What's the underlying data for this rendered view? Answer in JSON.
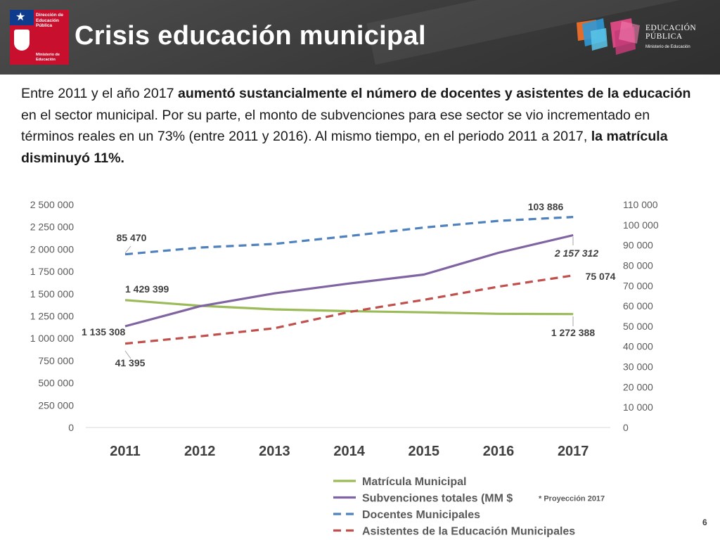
{
  "header": {
    "title": "Crisis educación municipal",
    "gov_logo_line1": "Dirección de",
    "gov_logo_line2": "Educación",
    "gov_logo_line3": "Pública",
    "gov_logo_ministry1": "Ministerio de",
    "gov_logo_ministry2": "Educación",
    "brand_line1": "EDUCACIÓN",
    "brand_line2": "PÚBLICA",
    "brand_line3": "Ministerio de Educación"
  },
  "intro": {
    "p1": "Entre 2011 y el año 2017 ",
    "b1": "aumentó sustancialmente el número de docentes y asistentes de la educación",
    "p2": " en el sector municipal. Por su parte, el monto de subvenciones para ese sector se vio incrementado en términos reales en un 73% (entre 2011 y 2016). Al mismo tiempo, en el periodo 2011 a 2017, ",
    "b2": "la matrícula disminuyó 11%."
  },
  "note": "* Proyección 2017",
  "page_number": "6",
  "chart_data": {
    "type": "line",
    "categories": [
      "2011",
      "2012",
      "2013",
      "2014",
      "2015",
      "2016",
      "2017"
    ],
    "y_left": {
      "range": [
        0,
        2500000
      ],
      "ticks": [
        "0",
        "250 000",
        "500 000",
        "750 000",
        "1 000 000",
        "1 250 000",
        "1 500 000",
        "1 750 000",
        "2 000 000",
        "2 250 000",
        "2 500 000"
      ]
    },
    "y_right": {
      "range": [
        0,
        110000
      ],
      "ticks": [
        "0",
        "10 000",
        "20 000",
        "30 000",
        "40 000",
        "50 000",
        "60 000",
        "70 000",
        "80 000",
        "90 000",
        "100 000",
        "110 000"
      ]
    },
    "series": [
      {
        "name": "Matrícula Municipal",
        "axis": "left",
        "color": "#9bbb59",
        "dash": "solid",
        "values": [
          1429399,
          1365000,
          1325000,
          1305000,
          1292000,
          1275000,
          1272388
        ],
        "labels": {
          "0": "1 429 399",
          "6": "1 272 388"
        }
      },
      {
        "name": "Subvenciones totales (MM $",
        "axis": "left",
        "color": "#8064a2",
        "dash": "solid",
        "values": [
          1135308,
          1360000,
          1505000,
          1615000,
          1715000,
          1960000,
          2157312
        ],
        "labels": {
          "0": "1 135 308",
          "6": "2 157 312"
        }
      },
      {
        "name": "Docentes Municipales",
        "axis": "right",
        "color": "#4f81bd",
        "dash": "dashed",
        "values": [
          85470,
          88800,
          90600,
          94500,
          98700,
          102000,
          103886
        ],
        "labels": {
          "0": "85 470",
          "6": "103 886"
        }
      },
      {
        "name": "Asistentes de la Educación Municipales",
        "axis": "right",
        "color": "#c0504d",
        "dash": "dashed",
        "values": [
          41395,
          45000,
          49000,
          57000,
          63000,
          69500,
          75074
        ],
        "labels": {
          "0": "41 395",
          "6": "75 074"
        }
      }
    ],
    "legend_position": "bottom",
    "grid": false
  }
}
